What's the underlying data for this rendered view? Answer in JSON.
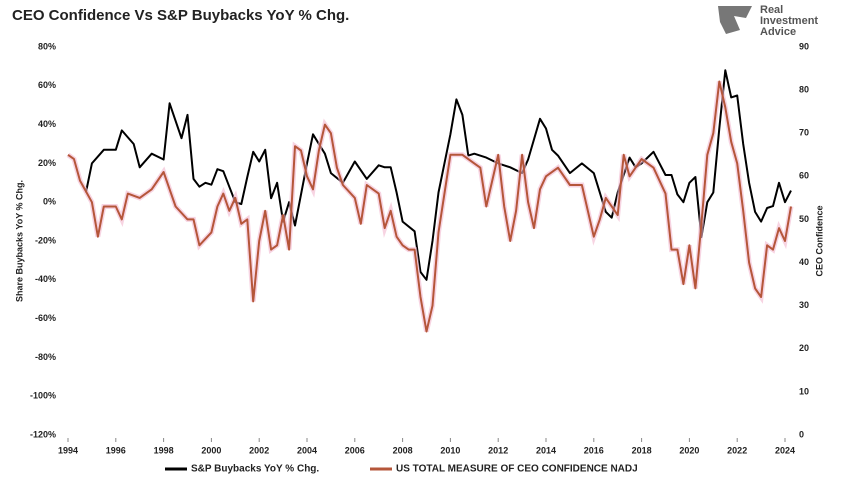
{
  "chart_data": {
    "type": "line",
    "title": "CEO Confidence Vs S&P Buybacks YoY % Chg.",
    "logo": [
      "Real",
      "Investment",
      "Advice"
    ],
    "y_label": "Share Buybacks YoY % Chg.",
    "y2_label": "CEO Confidence",
    "xlim": [
      1994,
      2024
    ],
    "xticks": [
      1994,
      1996,
      1998,
      2000,
      2002,
      2004,
      2006,
      2008,
      2010,
      2012,
      2014,
      2016,
      2018,
      2020,
      2022,
      2024
    ],
    "ylim": [
      -120,
      80
    ],
    "yticks": [
      {
        "value": -120,
        "label": "-120%"
      },
      {
        "value": -100,
        "label": "-100%"
      },
      {
        "value": -80,
        "label": "-80%"
      },
      {
        "value": -60,
        "label": "-60%"
      },
      {
        "value": -40,
        "label": "-40%"
      },
      {
        "value": -20,
        "label": "-20%"
      },
      {
        "value": 0,
        "label": "0%"
      },
      {
        "value": 20,
        "label": "20%"
      },
      {
        "value": 40,
        "label": "40%"
      },
      {
        "value": 60,
        "label": "60%"
      },
      {
        "value": 80,
        "label": "80%"
      }
    ],
    "y2lim": [
      0,
      90
    ],
    "y2ticks": [
      0,
      10,
      20,
      30,
      40,
      50,
      60,
      70,
      80,
      90
    ],
    "series": [
      {
        "name": "S&P Buybacks YoY % Chg.",
        "color": "#000000",
        "axis": "y",
        "x": [
          1994.75,
          1995,
          1995.5,
          1996,
          1996.25,
          1996.75,
          1997,
          1997.5,
          1998,
          1998.25,
          1998.75,
          1999,
          1999.25,
          1999.5,
          1999.75,
          2000,
          2000.25,
          2000.5,
          2001,
          2001.25,
          2001.5,
          2001.75,
          2002,
          2002.25,
          2002.5,
          2002.75,
          2003,
          2003.25,
          2003.5,
          2004,
          2004.25,
          2004.5,
          2004.75,
          2005,
          2005.5,
          2006,
          2006.5,
          2007,
          2007.25,
          2007.5,
          2007.75,
          2008,
          2008.5,
          2008.75,
          2009,
          2009.25,
          2009.5,
          2010,
          2010.25,
          2010.5,
          2010.75,
          2011,
          2011.5,
          2012,
          2012.5,
          2013,
          2013.25,
          2013.75,
          2014,
          2014.25,
          2014.5,
          2015,
          2015.5,
          2016,
          2016.5,
          2016.75,
          2017,
          2017.5,
          2017.75,
          2018,
          2018.5,
          2019,
          2019.25,
          2019.5,
          2019.75,
          2020,
          2020.25,
          2020.5,
          2020.75,
          2021,
          2021.25,
          2021.5,
          2021.75,
          2022,
          2022.25,
          2022.5,
          2022.75,
          2023,
          2023.25,
          2023.5,
          2023.75,
          2024,
          2024.25
        ],
        "values": [
          5,
          20,
          27,
          27,
          37,
          30,
          18,
          25,
          22,
          51,
          33,
          45,
          12,
          8,
          10,
          9,
          17,
          16,
          0,
          -1,
          13,
          26,
          21,
          27,
          2,
          10,
          -10,
          0,
          -12,
          20,
          35,
          30,
          25,
          15,
          10,
          21,
          12,
          19,
          18,
          18,
          5,
          -10,
          -15,
          -36,
          -40,
          -20,
          5,
          35,
          53,
          45,
          24,
          25,
          23,
          20,
          18,
          15,
          22,
          43,
          38,
          27,
          24,
          15,
          20,
          15,
          -5,
          -8,
          5,
          23,
          18,
          20,
          26,
          14,
          14,
          4,
          0,
          10,
          13,
          -18,
          0,
          5,
          38,
          68,
          54,
          55,
          30,
          10,
          -5,
          -10,
          -3,
          -2,
          10,
          0,
          6
        ]
      },
      {
        "name": "US TOTAL MEASURE OF CEO CONFIDENCE NADJ",
        "color": "#b5563a",
        "axis": "y2",
        "x": [
          1994,
          1994.25,
          1994.5,
          1995,
          1995.25,
          1995.5,
          1996,
          1996.25,
          1996.5,
          1997,
          1997.5,
          1998,
          1998.25,
          1998.5,
          1999,
          1999.25,
          1999.5,
          2000,
          2000.25,
          2000.5,
          2000.75,
          2001,
          2001.25,
          2001.5,
          2001.75,
          2002,
          2002.25,
          2002.5,
          2002.75,
          2003,
          2003.25,
          2003.5,
          2003.75,
          2004,
          2004.25,
          2004.5,
          2004.75,
          2005,
          2005.25,
          2005.5,
          2006,
          2006.25,
          2006.5,
          2007,
          2007.25,
          2007.5,
          2007.75,
          2008,
          2008.25,
          2008.5,
          2008.75,
          2009,
          2009.25,
          2009.5,
          2010,
          2010.5,
          2011,
          2011.25,
          2011.5,
          2012,
          2012.25,
          2012.5,
          2012.75,
          2013,
          2013.25,
          2013.5,
          2013.75,
          2014,
          2014.5,
          2015,
          2015.5,
          2016,
          2016.25,
          2016.5,
          2017,
          2017.25,
          2017.5,
          2018,
          2018.5,
          2019,
          2019.25,
          2019.5,
          2019.75,
          2020,
          2020.25,
          2020.5,
          2020.75,
          2021,
          2021.25,
          2021.5,
          2021.75,
          2022,
          2022.25,
          2022.5,
          2022.75,
          2023,
          2023.25,
          2023.5,
          2023.75,
          2024,
          2024.25
        ],
        "values": [
          65,
          64,
          59,
          54,
          46,
          53,
          53,
          50,
          56,
          55,
          57,
          61,
          57,
          53,
          50,
          50,
          44,
          47,
          53,
          56,
          52,
          55,
          49,
          50,
          31,
          45,
          52,
          43,
          44,
          51,
          43,
          67,
          66,
          60,
          57,
          66,
          72,
          70,
          62,
          58,
          55,
          49,
          58,
          56,
          48,
          52,
          46,
          44,
          43,
          43,
          32,
          24,
          30,
          47,
          65,
          65,
          63,
          62,
          53,
          65,
          53,
          45,
          52,
          65,
          54,
          48,
          57,
          60,
          62,
          58,
          58,
          46,
          50,
          55,
          51,
          65,
          60,
          64,
          62,
          56,
          43,
          43,
          35,
          44,
          34,
          49,
          65,
          70,
          82,
          76,
          68,
          63,
          52,
          40,
          34,
          32,
          44,
          43,
          48,
          45,
          53
        ]
      }
    ]
  }
}
